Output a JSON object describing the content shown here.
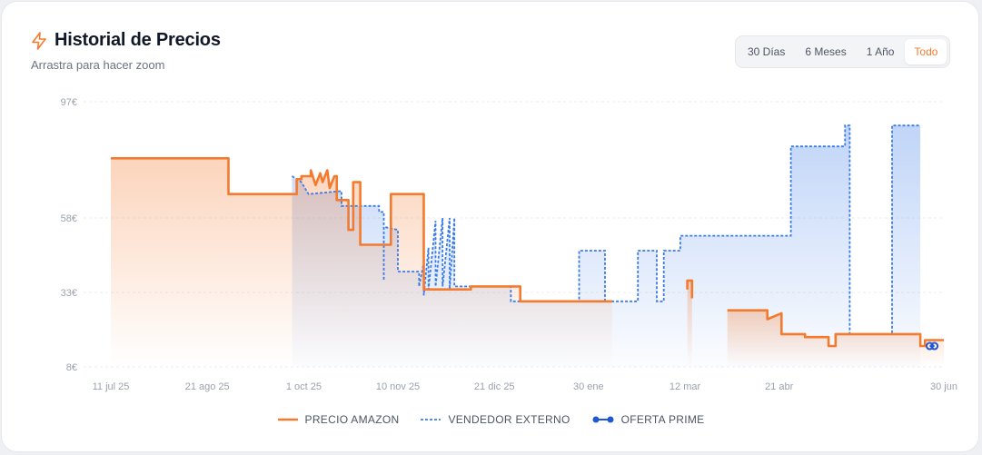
{
  "header": {
    "title": "Historial de Precios",
    "subtitle": "Arrastra para hacer zoom",
    "icon": "lightning-icon"
  },
  "range_buttons": [
    {
      "label": "30 Días",
      "active": false
    },
    {
      "label": "6 Meses",
      "active": false
    },
    {
      "label": "1 Año",
      "active": false
    },
    {
      "label": "Todo",
      "active": true
    }
  ],
  "colors": {
    "amazon": "#f47a2e",
    "external": "#3b7be8",
    "prime": "#1f57d6",
    "accent": "#f47a2e"
  },
  "chart_data": {
    "type": "line",
    "title": "Historial de Precios",
    "xlabel": "",
    "ylabel": "",
    "ylim": [
      8,
      97
    ],
    "y_ticks": [
      {
        "value": 97,
        "label": "97€"
      },
      {
        "value": 58,
        "label": "58€"
      },
      {
        "value": 33,
        "label": "33€"
      },
      {
        "value": 8,
        "label": "8€"
      }
    ],
    "x_range": [
      "2025-07-11",
      "2026-06-30"
    ],
    "x_ticks": [
      {
        "date": "2025-07-11",
        "label": "11 jul 25"
      },
      {
        "date": "2025-08-21",
        "label": "21 ago 25"
      },
      {
        "date": "2025-10-01",
        "label": "1 oct 25"
      },
      {
        "date": "2025-11-10",
        "label": "10 nov 25"
      },
      {
        "date": "2025-12-21",
        "label": "21 dic 25"
      },
      {
        "date": "2026-01-30",
        "label": "30 ene"
      },
      {
        "date": "2026-03-12",
        "label": "12 mar"
      },
      {
        "date": "2026-04-21",
        "label": "21 abr"
      },
      {
        "date": "2026-06-30",
        "label": "30 jun"
      }
    ],
    "grid": true,
    "legend_position": "bottom",
    "series": [
      {
        "name": "PRECIO AMAZON",
        "style": "solid",
        "points": [
          [
            "2025-07-11",
            78
          ],
          [
            "2025-08-30",
            78
          ],
          [
            "2025-08-30",
            66
          ],
          [
            "2025-09-28",
            66
          ],
          [
            "2025-09-28",
            71
          ],
          [
            "2025-09-30",
            71
          ],
          [
            "2025-09-30",
            72
          ],
          [
            "2025-10-04",
            72
          ],
          [
            "2025-10-04",
            74
          ],
          [
            "2025-10-06",
            69
          ],
          [
            "2025-10-08",
            73
          ],
          [
            "2025-10-09",
            70
          ],
          [
            "2025-10-11",
            74
          ],
          [
            "2025-10-12",
            68
          ],
          [
            "2025-10-14",
            72
          ],
          [
            "2025-10-15",
            72
          ],
          [
            "2025-10-15",
            64
          ],
          [
            "2025-10-20",
            64
          ],
          [
            "2025-10-20",
            54
          ],
          [
            "2025-10-22",
            54
          ],
          [
            "2025-10-22",
            70
          ],
          [
            "2025-10-23",
            70
          ],
          [
            "2025-10-25",
            70
          ],
          [
            "2025-10-25",
            49
          ],
          [
            "2025-11-07",
            49
          ],
          [
            "2025-11-07",
            66
          ],
          [
            "2025-11-21",
            66
          ],
          [
            "2025-11-21",
            34
          ],
          [
            "2025-11-28",
            34
          ],
          [
            "2025-12-11",
            34
          ],
          [
            "2025-12-11",
            35
          ],
          [
            "2026-01-01",
            35
          ],
          [
            "2026-01-01",
            30
          ],
          [
            "2026-02-09",
            30
          ]
        ]
      },
      {
        "name": "PRECIO AMAZON",
        "style": "solid",
        "points": [
          [
            "2026-03-13",
            34
          ],
          [
            "2026-03-13",
            37
          ],
          [
            "2026-03-15",
            37
          ],
          [
            "2026-03-15",
            31
          ]
        ]
      },
      {
        "name": "PRECIO AMAZON",
        "style": "solid",
        "points": [
          [
            "2026-03-30",
            27
          ],
          [
            "2026-04-06",
            27
          ],
          [
            "2026-04-16",
            27
          ],
          [
            "2026-04-16",
            24
          ],
          [
            "2026-04-22",
            26
          ],
          [
            "2026-04-22",
            19
          ],
          [
            "2026-05-02",
            19
          ],
          [
            "2026-05-02",
            18
          ],
          [
            "2026-05-12",
            18
          ],
          [
            "2026-05-12",
            15
          ],
          [
            "2026-05-15",
            15
          ],
          [
            "2026-05-15",
            19
          ],
          [
            "2026-06-06",
            19
          ],
          [
            "2026-06-20",
            19
          ],
          [
            "2026-06-20",
            15
          ],
          [
            "2026-06-22",
            15
          ],
          [
            "2026-06-22",
            17
          ],
          [
            "2026-06-30",
            17
          ]
        ]
      },
      {
        "name": "VENDEDOR EXTERNO",
        "style": "dashed",
        "points": [
          [
            "2025-09-26",
            72
          ],
          [
            "2025-09-30",
            70
          ],
          [
            "2025-10-03",
            66
          ],
          [
            "2025-10-17",
            67
          ],
          [
            "2025-10-17",
            62
          ],
          [
            "2025-11-02",
            62
          ],
          [
            "2025-11-02",
            60
          ],
          [
            "2025-11-04",
            60
          ],
          [
            "2025-11-04",
            37
          ],
          [
            "2025-11-04",
            55
          ],
          [
            "2025-11-10",
            54
          ],
          [
            "2025-11-10",
            40
          ],
          [
            "2025-11-19",
            40
          ],
          [
            "2025-11-19",
            35
          ],
          [
            "2025-11-21",
            43
          ],
          [
            "2025-11-21",
            32
          ],
          [
            "2025-11-23",
            48
          ],
          [
            "2025-11-23",
            34
          ],
          [
            "2025-11-26",
            57
          ],
          [
            "2025-11-26",
            35
          ],
          [
            "2025-11-29",
            58
          ],
          [
            "2025-11-29",
            35
          ],
          [
            "2025-12-02",
            58
          ],
          [
            "2025-12-02",
            34
          ],
          [
            "2025-12-04",
            58
          ],
          [
            "2025-12-04",
            35
          ],
          [
            "2025-12-28",
            35
          ],
          [
            "2025-12-28",
            30
          ],
          [
            "2026-01-26",
            30
          ],
          [
            "2026-01-26",
            47
          ],
          [
            "2026-02-06",
            47
          ],
          [
            "2026-02-06",
            30
          ],
          [
            "2026-02-20",
            30
          ],
          [
            "2026-02-20",
            47
          ],
          [
            "2026-02-28",
            47
          ],
          [
            "2026-02-28",
            30
          ],
          [
            "2026-03-03",
            30
          ],
          [
            "2026-03-03",
            47
          ],
          [
            "2026-03-10",
            47
          ],
          [
            "2026-03-10",
            52
          ],
          [
            "2026-04-26",
            52
          ],
          [
            "2026-04-26",
            82
          ],
          [
            "2026-05-19",
            82
          ],
          [
            "2026-05-19",
            89
          ],
          [
            "2026-05-21",
            89
          ],
          [
            "2026-05-21",
            19
          ],
          [
            "2026-06-08",
            19
          ],
          [
            "2026-06-08",
            89
          ],
          [
            "2026-06-20",
            89
          ]
        ]
      },
      {
        "name": "OFERTA PRIME",
        "style": "dots",
        "points": [
          [
            "2026-06-24",
            15
          ],
          [
            "2026-06-26",
            15
          ]
        ]
      }
    ]
  },
  "legend": [
    {
      "label": "PRECIO AMAZON",
      "style": "solid"
    },
    {
      "label": "VENDEDOR EXTERNO",
      "style": "dashed"
    },
    {
      "label": "OFERTA PRIME",
      "style": "dots"
    }
  ]
}
